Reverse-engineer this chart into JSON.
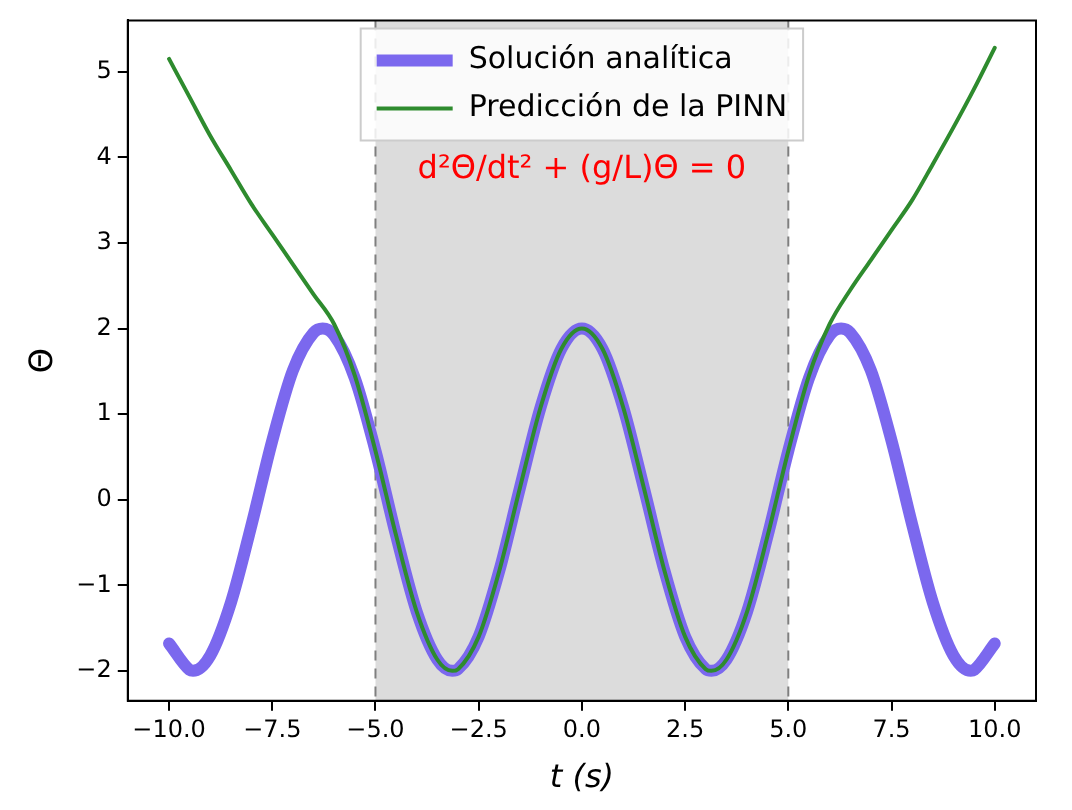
{
  "chart_data": {
    "type": "line",
    "xlabel": "t (s)",
    "ylabel": "Θ",
    "annotations": [
      "d²Θ/dt² + (g/L)Θ = 0"
    ],
    "legend": "top",
    "grid": false,
    "marker": "none",
    "line_style": "solid",
    "xlim": [
      -11,
      11
    ],
    "xticks": [
      {
        "value": -10,
        "label": "−10.0"
      },
      {
        "value": -7.5,
        "label": "−7.5"
      },
      {
        "value": -5,
        "label": "−5.0"
      },
      {
        "value": -2.5,
        "label": "−2.5"
      },
      {
        "value": 0,
        "label": "0.0"
      },
      {
        "value": 2.5,
        "label": "2.5"
      },
      {
        "value": 5,
        "label": "5.0"
      },
      {
        "value": 7.5,
        "label": "7.5"
      },
      {
        "value": 10,
        "label": "10.0"
      }
    ],
    "ylim": [
      -2.35,
      5.6
    ],
    "yticks": [
      {
        "value": -2,
        "label": "−2"
      },
      {
        "value": -1,
        "label": "−1"
      },
      0,
      1,
      2,
      3,
      4,
      5
    ],
    "bands": [
      {
        "axis": "x",
        "from": -5,
        "to": 5,
        "color": "#dcdcdc"
      }
    ],
    "ref_lines": [
      {
        "axis": "x",
        "value": -5,
        "color": "#7f7f7f",
        "line_style": "dashed"
      },
      {
        "axis": "x",
        "value": 5,
        "color": "#7f7f7f",
        "line_style": "dashed"
      }
    ],
    "series": [
      {
        "name": "Solución analítica",
        "color": "#7b68ee",
        "x": [
          -10,
          -9.5,
          -9.42,
          -9,
          -8.5,
          -8,
          -7.5,
          -7,
          -6.5,
          -6.28,
          -6,
          -5.5,
          -5,
          -4.5,
          -4,
          -3.5,
          -3.14,
          -3,
          -2.5,
          -2,
          -1.5,
          -1,
          -0.5,
          0,
          0.5,
          1,
          1.5,
          2,
          2.5,
          3,
          3.14,
          3.5,
          4,
          4.5,
          5,
          5.5,
          6,
          6.28,
          6.5,
          7,
          7.5,
          8,
          8.5,
          9,
          9.42,
          9.5,
          10
        ],
        "values": [
          -1.68,
          -1.99,
          -2,
          -1.82,
          -1.2,
          -0.29,
          0.69,
          1.51,
          1.95,
          2,
          1.92,
          1.42,
          0.57,
          -0.42,
          -1.31,
          -1.87,
          -2,
          -1.98,
          -1.6,
          -0.83,
          0.14,
          1.08,
          1.76,
          2,
          1.76,
          1.08,
          0.14,
          -0.83,
          -1.6,
          -1.98,
          -2,
          -1.87,
          -1.31,
          -0.42,
          0.57,
          1.42,
          1.92,
          2,
          1.95,
          1.51,
          0.69,
          -0.29,
          -1.2,
          -1.82,
          -2,
          -1.99,
          -1.68
        ]
      },
      {
        "name": "Predicción de la PINN",
        "color": "#2e8b2e",
        "x": [
          -10,
          -9.5,
          -9,
          -8.5,
          -8,
          -7.5,
          -7,
          -6.5,
          -6,
          -5.5,
          -5,
          -4.5,
          -4,
          -3.5,
          -3.14,
          -3,
          -2.5,
          -2,
          -1.5,
          -1,
          -0.5,
          0,
          0.5,
          1,
          1.5,
          2,
          2.5,
          3,
          3.14,
          3.5,
          4,
          4.5,
          5,
          5.5,
          6,
          6.5,
          7,
          7.5,
          8,
          8.5,
          9,
          9.5,
          10
        ],
        "values": [
          5.15,
          4.7,
          4.25,
          3.85,
          3.45,
          3.1,
          2.75,
          2.4,
          2.05,
          1.45,
          0.57,
          -0.42,
          -1.31,
          -1.87,
          -2,
          -1.98,
          -1.6,
          -0.83,
          0.14,
          1.08,
          1.76,
          2,
          1.76,
          1.08,
          0.14,
          -0.83,
          -1.6,
          -1.98,
          -2,
          -1.87,
          -1.31,
          -0.42,
          0.57,
          1.45,
          2.05,
          2.45,
          2.8,
          3.15,
          3.5,
          3.92,
          4.35,
          4.8,
          5.28
        ]
      }
    ]
  }
}
